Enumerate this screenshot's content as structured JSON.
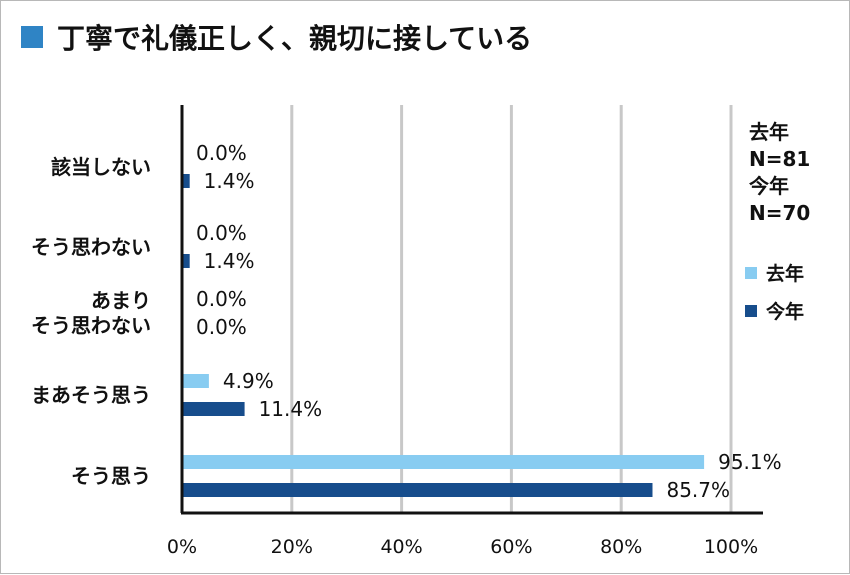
{
  "title": "丁寧で礼儀正しく、親切に接している",
  "colors": {
    "title_square": "#2f84c5",
    "last_year": "#88ccf1",
    "this_year": "#174d8c",
    "grid": "#c8c8c8",
    "axis": "#111111"
  },
  "sample_sizes": [
    {
      "label": "去年",
      "value": "N=81"
    },
    {
      "label": "今年",
      "value": "N=70"
    }
  ],
  "chart_data": {
    "type": "bar",
    "orientation": "horizontal",
    "title": "丁寧で礼儀正しく、親切に接している",
    "categories": [
      [
        "該当しない"
      ],
      [
        "そう思わない"
      ],
      [
        "あまり",
        "そう思わない"
      ],
      [
        "まあそう思う"
      ],
      [
        "そう思う"
      ]
    ],
    "series": [
      {
        "name": "去年",
        "color": "#88ccf1",
        "values": [
          0.0,
          0.0,
          0.0,
          4.9,
          95.1
        ],
        "labels": [
          "0.0%",
          "0.0%",
          "0.0%",
          "4.9%",
          "95.1%"
        ]
      },
      {
        "name": "今年",
        "color": "#174d8c",
        "values": [
          1.4,
          1.4,
          0.0,
          11.4,
          85.7
        ],
        "labels": [
          "1.4%",
          "1.4%",
          "0.0%",
          "11.4%",
          "85.7%"
        ]
      }
    ],
    "xlim": [
      0,
      100
    ],
    "xticks": [
      "0%",
      "20%",
      "40%",
      "60%",
      "80%",
      "100%"
    ],
    "grid": true,
    "legend_position": "right"
  }
}
